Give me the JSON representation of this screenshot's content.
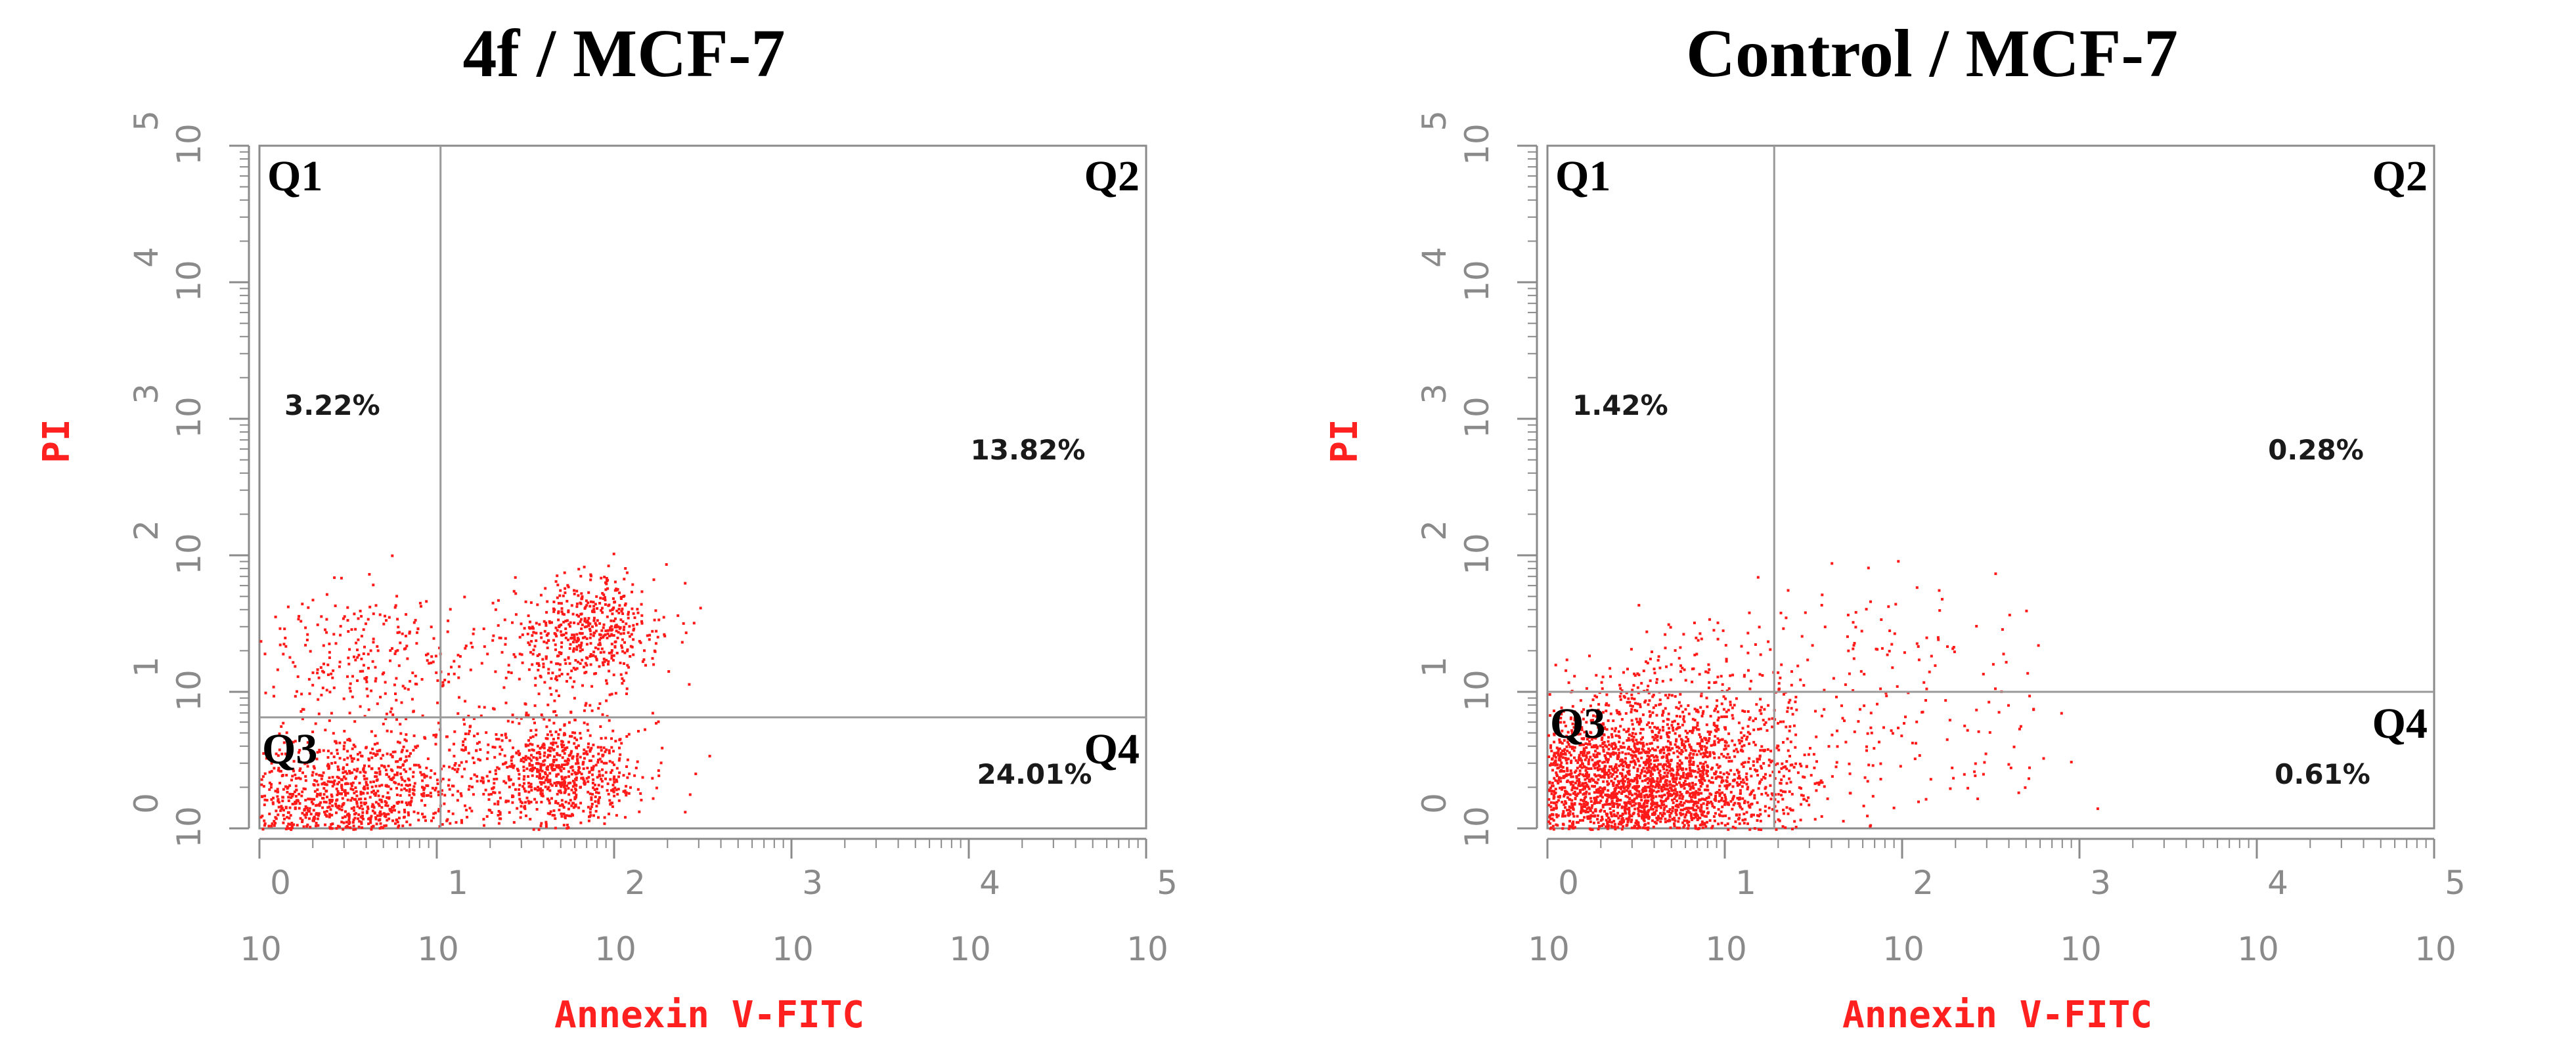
{
  "chart_data": [
    {
      "type": "scatter",
      "title": "4f / MCF-7",
      "xlabel": "Annexin V-FITC",
      "ylabel": "PI",
      "scale": "log",
      "xlim": [
        1,
        100000
      ],
      "ylim": [
        1,
        100000
      ],
      "x_ticks": [
        {
          "base": "10",
          "exp": "0"
        },
        {
          "base": "10",
          "exp": "1"
        },
        {
          "base": "10",
          "exp": "2"
        },
        {
          "base": "10",
          "exp": "3"
        },
        {
          "base": "10",
          "exp": "4"
        },
        {
          "base": "10",
          "exp": "5"
        }
      ],
      "y_ticks": [
        {
          "base": "10",
          "exp": "0"
        },
        {
          "base": "10",
          "exp": "1"
        },
        {
          "base": "10",
          "exp": "2"
        },
        {
          "base": "10",
          "exp": "3"
        },
        {
          "base": "10",
          "exp": "4"
        },
        {
          "base": "10",
          "exp": "5"
        }
      ],
      "gate_x": 10.5,
      "gate_y": 6.5,
      "quadrants": [
        {
          "label": "Q1",
          "percent": "3.22%"
        },
        {
          "label": "Q2",
          "percent": "13.82%"
        },
        {
          "label": "Q3",
          "percent": ""
        },
        {
          "label": "Q4",
          "percent": "24.01%"
        }
      ],
      "point_color": "#ff1a1a",
      "clusters": [
        {
          "x": 3.5,
          "y": 1.6,
          "spread_x": 0.35,
          "spread_y": 0.28,
          "n": 900
        },
        {
          "x": 2.2,
          "y": 1.3,
          "spread_x": 0.4,
          "spread_y": 0.22,
          "n": 450
        },
        {
          "x": 4.0,
          "y": 18,
          "spread_x": 0.35,
          "spread_y": 0.25,
          "n": 260
        },
        {
          "x": 50,
          "y": 2.5,
          "spread_x": 0.22,
          "spread_y": 0.2,
          "n": 650
        },
        {
          "x": 70,
          "y": 28,
          "spread_x": 0.22,
          "spread_y": 0.2,
          "n": 520
        },
        {
          "x": 25,
          "y": 5,
          "spread_x": 0.35,
          "spread_y": 0.3,
          "n": 200
        }
      ]
    },
    {
      "type": "scatter",
      "title": "Control / MCF-7",
      "xlabel": "Annexin V-FITC",
      "ylabel": "PI",
      "scale": "log",
      "xlim": [
        1,
        100000
      ],
      "ylim": [
        1,
        100000
      ],
      "x_ticks": [
        {
          "base": "10",
          "exp": "0"
        },
        {
          "base": "10",
          "exp": "1"
        },
        {
          "base": "10",
          "exp": "2"
        },
        {
          "base": "10",
          "exp": "3"
        },
        {
          "base": "10",
          "exp": "4"
        },
        {
          "base": "10",
          "exp": "5"
        }
      ],
      "y_ticks": [
        {
          "base": "10",
          "exp": "0"
        },
        {
          "base": "10",
          "exp": "1"
        },
        {
          "base": "10",
          "exp": "2"
        },
        {
          "base": "10",
          "exp": "3"
        },
        {
          "base": "10",
          "exp": "4"
        },
        {
          "base": "10",
          "exp": "5"
        }
      ],
      "gate_x": 19,
      "gate_y": 10,
      "quadrants": [
        {
          "label": "Q1",
          "percent": "1.42%"
        },
        {
          "label": "Q2",
          "percent": "0.28%"
        },
        {
          "label": "Q3",
          "percent": ""
        },
        {
          "label": "Q4",
          "percent": "0.61%"
        }
      ],
      "point_color": "#ff1a1a",
      "clusters": [
        {
          "x": 2.5,
          "y": 1.8,
          "spread_x": 0.45,
          "spread_y": 0.3,
          "n": 2600
        },
        {
          "x": 5,
          "y": 3,
          "spread_x": 0.4,
          "spread_y": 0.3,
          "n": 700
        },
        {
          "x": 8,
          "y": 12,
          "spread_x": 0.35,
          "spread_y": 0.25,
          "n": 160
        },
        {
          "x": 120,
          "y": 4,
          "spread_x": 0.45,
          "spread_y": 0.3,
          "n": 110
        },
        {
          "x": 80,
          "y": 25,
          "spread_x": 0.4,
          "spread_y": 0.25,
          "n": 70
        }
      ]
    }
  ]
}
